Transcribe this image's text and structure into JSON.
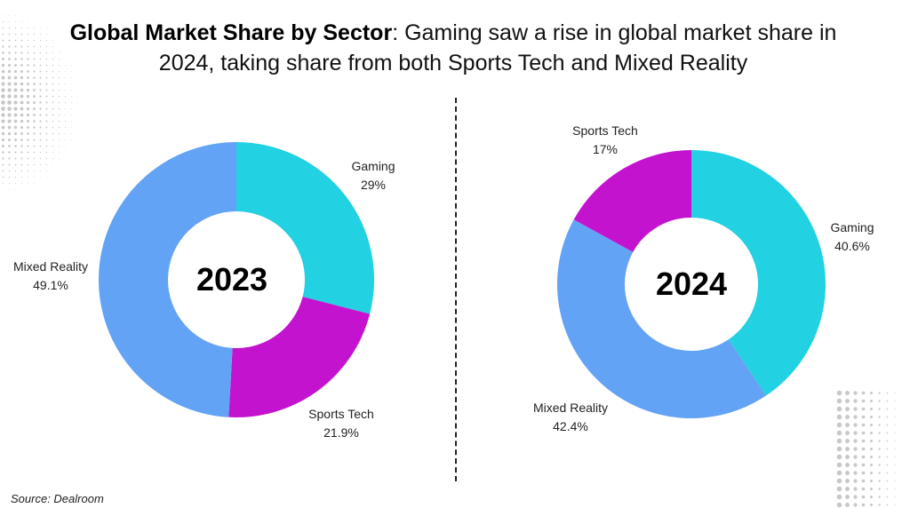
{
  "title": {
    "bold": "Global Market Share by Sector",
    "rest": ": Gaming saw a rise in global market share in 2024, taking share from both Sports Tech and Mixed Reality"
  },
  "source": "Source: Dealroom",
  "colors": {
    "Gaming": "#22d1e2",
    "Sports Tech": "#c313cf",
    "Mixed Reality": "#63a3f5"
  },
  "chart_data": [
    {
      "type": "pie",
      "variant": "donut",
      "title": "2023",
      "slices": [
        {
          "label": "Gaming",
          "value": 29,
          "display": "29%"
        },
        {
          "label": "Sports Tech",
          "value": 21.9,
          "display": "21.9%"
        },
        {
          "label": "Mixed Reality",
          "value": 49.1,
          "display": "49.1%"
        }
      ]
    },
    {
      "type": "pie",
      "variant": "donut",
      "title": "2024",
      "slices": [
        {
          "label": "Gaming",
          "value": 40.6,
          "display": "40.6%"
        },
        {
          "label": "Mixed Reality",
          "value": 42.4,
          "display": "42.4%"
        },
        {
          "label": "Sports Tech",
          "value": 17,
          "display": "17%"
        }
      ]
    }
  ]
}
